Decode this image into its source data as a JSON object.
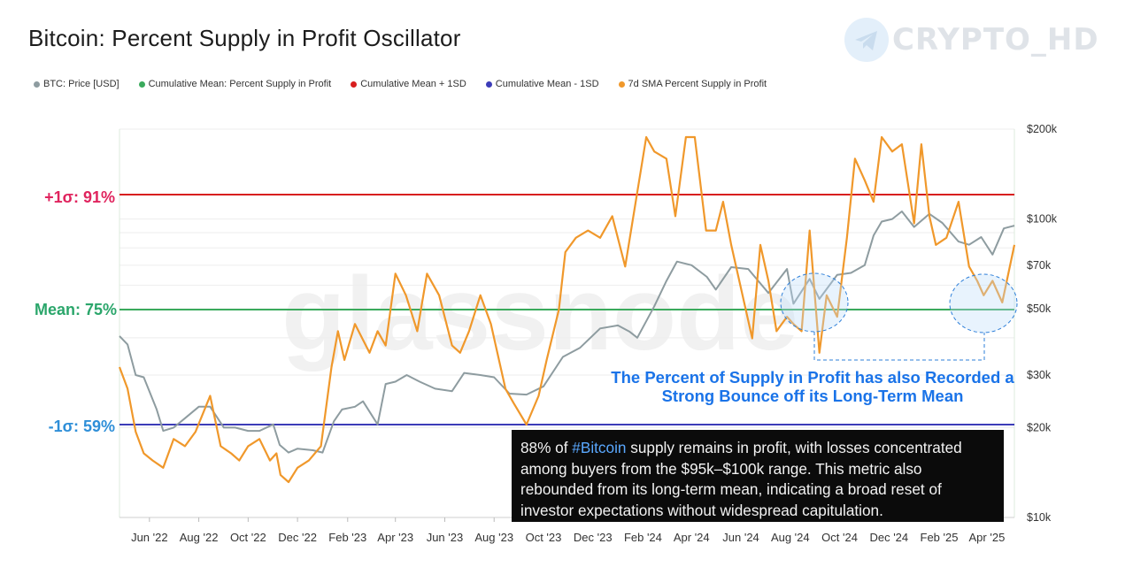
{
  "title": "Bitcoin: Percent Supply in Profit Oscillator",
  "brand": {
    "text": "CRYPTO_HD",
    "icon": "telegram-icon"
  },
  "colors": {
    "price": "#8e9ca0",
    "mean": "#3aaa5c",
    "plus1sd": "#d81e1e",
    "minus1sd": "#3c3cb8",
    "sma": "#f0982b",
    "plus_label": "#e0245e",
    "mean_label": "#2ba66b",
    "minus_label": "#2f8fd8",
    "annotation": "#1a73e8"
  },
  "legend": [
    {
      "label": "BTC: Price [USD]",
      "color": "#8e9ca0"
    },
    {
      "label": "Cumulative Mean: Percent Supply in Profit",
      "color": "#3aaa5c"
    },
    {
      "label": "Cumulative Mean + 1SD",
      "color": "#d81e1e"
    },
    {
      "label": "Cumulative Mean - 1SD",
      "color": "#3c3cb8"
    },
    {
      "label": "7d SMA Percent Supply in Profit",
      "color": "#f0982b"
    }
  ],
  "level_labels": {
    "plus": "+1σ: 91%",
    "mean": "Mean: 75%",
    "minus": "-1σ: 59%"
  },
  "annotation": {
    "line1": "The Percent of Supply in Profit has also Recorded a",
    "line2": "Strong Bounce off its Long-Term Mean"
  },
  "note": {
    "lead": "88% of ",
    "hashtag": "#Bitcoin",
    "rest": " supply remains in profit, with losses concentrated among buyers from the $95k–$100k range. This metric also rebounded from its long-term mean, indicating a broad reset of investor expectations without widespread capitulation."
  },
  "watermark": "glassnode",
  "chart_data": {
    "type": "line",
    "title": "Bitcoin: Percent Supply in Profit Oscillator",
    "x_ticks": [
      "Jun '22",
      "Aug '22",
      "Oct '22",
      "Dec '22",
      "Feb '23",
      "Apr '23",
      "Jun '23",
      "Aug '23",
      "Oct '23",
      "Dec '23",
      "Feb '24",
      "Apr '24",
      "Jun '24",
      "Aug '24",
      "Oct '24",
      "Dec '24",
      "Feb '25",
      "Apr '25"
    ],
    "x_range": [
      "2022-04-25",
      "2025-05-05"
    ],
    "y_right": {
      "scale": "log",
      "tick_labels": [
        "$200k",
        "$100k",
        "$70k",
        "$50k",
        "$30k",
        "$20k",
        "$10k"
      ],
      "tick_values": [
        200000,
        100000,
        70000,
        50000,
        30000,
        20000,
        10000
      ],
      "range": [
        10000,
        200000
      ]
    },
    "y_left": {
      "unit": "%",
      "reference_lines": [
        {
          "name": "Cumulative Mean + 1SD",
          "value": 91
        },
        {
          "name": "Cumulative Mean: Percent Supply in Profit",
          "value": 75
        },
        {
          "name": "Cumulative Mean - 1SD",
          "value": 59
        }
      ]
    },
    "grid": true,
    "legend_position": "top-left",
    "series": [
      {
        "name": "BTC: Price [USD]",
        "axis": "right",
        "x": [
          "2022-04-25",
          "2022-05-05",
          "2022-05-15",
          "2022-05-25",
          "2022-06-10",
          "2022-06-18",
          "2022-07-01",
          "2022-07-15",
          "2022-08-01",
          "2022-08-15",
          "2022-09-01",
          "2022-09-15",
          "2022-10-01",
          "2022-10-15",
          "2022-11-01",
          "2022-11-09",
          "2022-11-20",
          "2022-12-01",
          "2022-12-20",
          "2023-01-01",
          "2023-01-15",
          "2023-01-25",
          "2023-02-10",
          "2023-02-20",
          "2023-03-10",
          "2023-03-20",
          "2023-04-01",
          "2023-04-15",
          "2023-05-01",
          "2023-05-20",
          "2023-06-10",
          "2023-06-25",
          "2023-07-15",
          "2023-08-01",
          "2023-08-20",
          "2023-09-10",
          "2023-10-01",
          "2023-10-25",
          "2023-11-15",
          "2023-12-10",
          "2024-01-01",
          "2024-01-15",
          "2024-01-25",
          "2024-02-15",
          "2024-03-01",
          "2024-03-14",
          "2024-04-01",
          "2024-04-20",
          "2024-05-01",
          "2024-05-20",
          "2024-06-10",
          "2024-07-05",
          "2024-07-28",
          "2024-08-05",
          "2024-08-25",
          "2024-09-06",
          "2024-09-28",
          "2024-10-15",
          "2024-11-01",
          "2024-11-12",
          "2024-11-22",
          "2024-12-05",
          "2024-12-17",
          "2025-01-01",
          "2025-01-20",
          "2025-02-05",
          "2025-02-25",
          "2025-03-10",
          "2025-03-25",
          "2025-04-08",
          "2025-04-22",
          "2025-05-05"
        ],
        "y": [
          40500,
          38000,
          30000,
          29500,
          23000,
          19500,
          20000,
          21500,
          23500,
          23500,
          20000,
          20000,
          19500,
          19500,
          20500,
          17500,
          16500,
          17000,
          16800,
          16500,
          21000,
          23000,
          23500,
          24500,
          20500,
          28000,
          28500,
          30000,
          28500,
          27000,
          26500,
          30500,
          30000,
          29500,
          26000,
          25800,
          27500,
          34500,
          37000,
          43000,
          44000,
          42000,
          40000,
          51000,
          62000,
          72000,
          70000,
          64000,
          58000,
          69000,
          68000,
          56500,
          68000,
          52000,
          63000,
          54000,
          65000,
          66000,
          70000,
          88000,
          98000,
          100000,
          106000,
          94000,
          104000,
          97000,
          84000,
          82000,
          87000,
          76000,
          93000,
          95000
        ]
      },
      {
        "name": "7d SMA Percent Supply in Profit",
        "axis": "left",
        "unit": "%",
        "x": [
          "2022-04-25",
          "2022-05-05",
          "2022-05-15",
          "2022-05-25",
          "2022-06-05",
          "2022-06-18",
          "2022-07-01",
          "2022-07-15",
          "2022-07-28",
          "2022-08-15",
          "2022-08-28",
          "2022-09-10",
          "2022-09-20",
          "2022-10-01",
          "2022-10-15",
          "2022-10-28",
          "2022-11-05",
          "2022-11-10",
          "2022-11-20",
          "2022-12-01",
          "2022-12-15",
          "2022-12-30",
          "2023-01-12",
          "2023-01-20",
          "2023-01-28",
          "2023-02-10",
          "2023-02-28",
          "2023-03-10",
          "2023-03-20",
          "2023-04-01",
          "2023-04-14",
          "2023-04-28",
          "2023-05-10",
          "2023-05-25",
          "2023-06-10",
          "2023-06-20",
          "2023-07-01",
          "2023-07-15",
          "2023-07-28",
          "2023-08-15",
          "2023-08-25",
          "2023-09-10",
          "2023-09-25",
          "2023-10-05",
          "2023-10-20",
          "2023-10-28",
          "2023-11-10",
          "2023-11-25",
          "2023-12-10",
          "2023-12-25",
          "2024-01-10",
          "2024-01-23",
          "2024-02-05",
          "2024-02-15",
          "2024-03-01",
          "2024-03-12",
          "2024-03-25",
          "2024-04-05",
          "2024-04-19",
          "2024-05-01",
          "2024-05-10",
          "2024-05-20",
          "2024-06-05",
          "2024-06-15",
          "2024-06-25",
          "2024-07-05",
          "2024-07-15",
          "2024-07-28",
          "2024-08-05",
          "2024-08-15",
          "2024-08-25",
          "2024-09-06",
          "2024-09-15",
          "2024-09-28",
          "2024-10-10",
          "2024-10-20",
          "2024-11-01",
          "2024-11-12",
          "2024-11-22",
          "2024-12-05",
          "2024-12-17",
          "2025-01-01",
          "2025-01-10",
          "2025-01-20",
          "2025-01-28",
          "2025-02-10",
          "2025-02-25",
          "2025-03-10",
          "2025-03-20",
          "2025-03-28",
          "2025-04-08",
          "2025-04-20",
          "2025-05-05"
        ],
        "y": [
          67,
          64,
          58,
          55,
          54,
          53,
          57,
          56,
          58,
          63,
          56,
          55,
          54,
          56,
          57,
          54,
          55,
          52,
          51,
          53,
          54,
          56,
          67,
          72,
          68,
          73,
          69,
          72,
          70,
          80,
          77,
          72,
          80,
          77,
          70,
          69,
          72,
          77,
          73,
          64,
          62,
          59,
          63,
          68,
          75,
          83,
          85,
          86,
          85,
          88,
          81,
          90,
          99,
          97,
          96,
          88,
          99,
          99,
          86,
          86,
          90,
          84,
          76,
          71,
          84,
          79,
          72,
          74,
          73,
          72,
          86,
          69,
          77,
          74,
          85,
          96,
          93,
          90,
          99,
          97,
          98,
          87,
          98,
          88,
          84,
          85,
          90,
          81,
          79,
          77,
          79,
          76,
          84
        ]
      }
    ]
  }
}
